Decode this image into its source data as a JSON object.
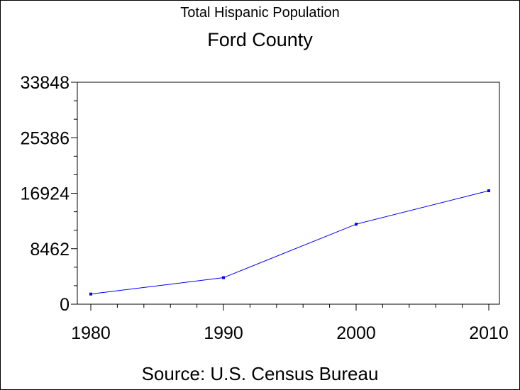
{
  "chart_data": {
    "type": "line",
    "title": "Total Hispanic Population",
    "subtitle": "Ford County",
    "source": "Source: U.S. Census Bureau",
    "x": [
      1980,
      1990,
      2000,
      2010
    ],
    "x_tick_labels": [
      "1980",
      "1990",
      "2000",
      "2010"
    ],
    "series": [
      {
        "values": [
          1550,
          4050,
          12200,
          17300
        ]
      }
    ],
    "y_ticks": [
      0,
      8462,
      16924,
      25386,
      33848
    ],
    "y_tick_labels": [
      "0",
      "8462",
      "16924",
      "25386",
      "33848"
    ],
    "ylim": [
      0,
      33848
    ],
    "xlim": [
      1980,
      2010
    ],
    "grid": false,
    "line_color": "#0000ff"
  }
}
